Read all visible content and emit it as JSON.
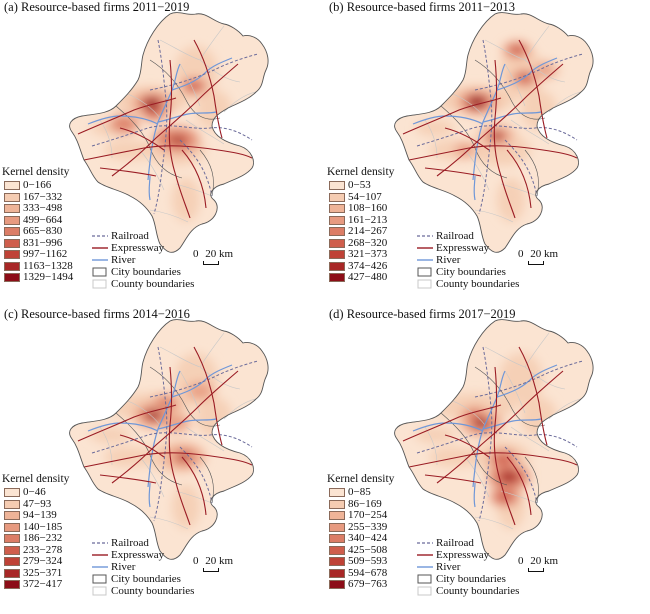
{
  "panels": [
    {
      "title": "(a)  Resource-based firms 2011−2019",
      "legend_title": "Kernel density",
      "classes": [
        "0−166",
        "167−332",
        "333−498",
        "499−664",
        "665−830",
        "831−996",
        "997−1162",
        "1163−1328",
        "1329−1494"
      ]
    },
    {
      "title": "(b)  Resource-based firms 2011−2013",
      "legend_title": "Kernel density",
      "classes": [
        "0−53",
        "54−107",
        "108−160",
        "161−213",
        "214−267",
        "268−320",
        "321−373",
        "374−426",
        "427−480"
      ]
    },
    {
      "title": "(c)  Resource-based firms 2014−2016",
      "legend_title": "Kernel density",
      "classes": [
        "0−46",
        "47−93",
        "94−139",
        "140−185",
        "186−232",
        "233−278",
        "279−324",
        "325−371",
        "372−417"
      ]
    },
    {
      "title": "(d)  Resource-based firms 2017−2019",
      "legend_title": "Kernel density",
      "classes": [
        "0−85",
        "86−169",
        "170−254",
        "255−339",
        "340−424",
        "425−508",
        "509−593",
        "594−678",
        "679−763"
      ]
    }
  ],
  "line_legend": {
    "railroad": "Railroad",
    "expressway": "Expressway",
    "river": "River",
    "city_boundaries": "City boundaries",
    "county_boundaries": "County boundaries"
  },
  "scale": {
    "zero": "0",
    "label": "20 km"
  },
  "colors": {
    "ramp": [
      "#fbe4d2",
      "#f5ccb2",
      "#efb498",
      "#e79a80",
      "#dc7d66",
      "#cf5e4c",
      "#bf4236",
      "#a82726",
      "#8c0d17"
    ],
    "railroad": "#6b6b9a",
    "expressway": "#9a1c24",
    "river": "#6f97d8",
    "city_boundary": "#555555",
    "county_boundary": "#c8c8c8"
  }
}
